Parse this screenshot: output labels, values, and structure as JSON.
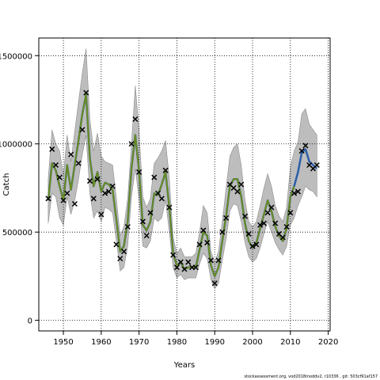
{
  "chart_data": {
    "type": "line",
    "xlabel": "Years",
    "ylabel": "Catch",
    "xlim": [
      1943.5,
      2020.5
    ],
    "ylim": [
      -60000,
      1600000
    ],
    "x_ticks": [
      1950,
      1960,
      1970,
      1980,
      1990,
      2000,
      2010,
      2020
    ],
    "y_ticks": [
      0,
      500000,
      1000000,
      1500000
    ],
    "y_tick_labels": [
      "0",
      "500000",
      "1000000",
      "1500000"
    ],
    "grid": true,
    "series": [
      {
        "kind": "band",
        "color": "#bdbdbd",
        "x": [
          1946,
          1947,
          1948,
          1949,
          1950,
          1951,
          1952,
          1953,
          1954,
          1955,
          1956,
          1957,
          1958,
          1959,
          1960,
          1961,
          1962,
          1963,
          1964,
          1965,
          1966,
          1967,
          1968,
          1969,
          1970,
          1971,
          1972,
          1973,
          1974,
          1975,
          1976,
          1977,
          1978,
          1979,
          1980,
          1981,
          1982,
          1983,
          1984,
          1985,
          1986,
          1987,
          1988,
          1989,
          1990,
          1991,
          1992,
          1993,
          1994,
          1995,
          1996,
          1997,
          1998,
          1999,
          2000,
          2001,
          2002,
          2003,
          2004,
          2005,
          2006,
          2007,
          2008,
          2009,
          2010,
          2011,
          2012,
          2013,
          2014,
          2015,
          2016,
          2017
        ],
        "lower": [
          550000,
          720000,
          700000,
          580000,
          540000,
          700000,
          600000,
          680000,
          800000,
          940000,
          1050000,
          720000,
          580000,
          620000,
          560000,
          640000,
          630000,
          610000,
          450000,
          280000,
          300000,
          420000,
          700000,
          860000,
          690000,
          420000,
          410000,
          450000,
          580000,
          560000,
          580000,
          680000,
          500000,
          300000,
          240000,
          260000,
          230000,
          240000,
          240000,
          240000,
          320000,
          380000,
          350000,
          230000,
          180000,
          210000,
          340000,
          460000,
          620000,
          660000,
          650000,
          560000,
          440000,
          360000,
          330000,
          350000,
          410000,
          490000,
          560000,
          500000,
          440000,
          400000,
          370000,
          420000,
          540000,
          580000,
          650000,
          700000,
          760000,
          740000,
          730000,
          700000
        ],
        "upper": [
          800000,
          1080000,
          1000000,
          960000,
          820000,
          1050000,
          900000,
          1070000,
          1240000,
          1400000,
          1540000,
          1140000,
          960000,
          1060000,
          930000,
          900000,
          890000,
          880000,
          690000,
          480000,
          530000,
          690000,
          1000000,
          1330000,
          1080000,
          700000,
          640000,
          690000,
          890000,
          920000,
          960000,
          1020000,
          800000,
          470000,
          380000,
          410000,
          360000,
          360000,
          360000,
          380000,
          500000,
          650000,
          610000,
          390000,
          330000,
          390000,
          560000,
          750000,
          930000,
          980000,
          1000000,
          880000,
          680000,
          560000,
          530000,
          560000,
          650000,
          750000,
          830000,
          760000,
          650000,
          590000,
          560000,
          640000,
          870000,
          960000,
          1010000,
          1170000,
          1200000,
          1110000,
          1080000,
          1050000
        ]
      },
      {
        "kind": "line",
        "color": "#2a5fa8",
        "width": 2.5,
        "x": [
          1946,
          1947,
          1948,
          1949,
          1950,
          1951,
          1952,
          1953,
          1954,
          1955,
          1956,
          1957,
          1958,
          1959,
          1960,
          1961,
          1962,
          1963,
          1964,
          1965,
          1966,
          1967,
          1968,
          1969,
          1970,
          1971,
          1972,
          1973,
          1974,
          1975,
          1976,
          1977,
          1978,
          1979,
          1980,
          1981,
          1982,
          1983,
          1984,
          1985,
          1986,
          1987,
          1988,
          1989,
          1990,
          1991,
          1992,
          1993,
          1994,
          1995,
          1996,
          1997,
          1998,
          1999,
          2000,
          2001,
          2002,
          2003,
          2004,
          2005,
          2006,
          2007,
          2008,
          2009,
          2010,
          2011,
          2012,
          2013,
          2014,
          2015,
          2016,
          2017
        ],
        "y": [
          680000,
          890000,
          850000,
          760000,
          680000,
          880000,
          740000,
          880000,
          1020000,
          1170000,
          1280000,
          920000,
          760000,
          840000,
          730000,
          780000,
          770000,
          740000,
          570000,
          390000,
          420000,
          560000,
          860000,
          1050000,
          850000,
          540000,
          510000,
          560000,
          720000,
          710000,
          770000,
          840000,
          640000,
          380000,
          310000,
          330000,
          290000,
          300000,
          300000,
          300000,
          400000,
          500000,
          480000,
          310000,
          250000,
          300000,
          450000,
          590000,
          760000,
          800000,
          800000,
          700000,
          550000,
          450000,
          410000,
          440000,
          520000,
          600000,
          680000,
          620000,
          530000,
          480000,
          450000,
          520000,
          700000,
          760000,
          840000,
          950000,
          970000,
          900000,
          880000,
          860000
        ]
      },
      {
        "kind": "line",
        "color": "#6a8c1f",
        "width": 2,
        "x": [
          1946,
          1947,
          1948,
          1949,
          1950,
          1951,
          1952,
          1953,
          1954,
          1955,
          1956,
          1957,
          1958,
          1959,
          1960,
          1961,
          1962,
          1963,
          1964,
          1965,
          1966,
          1967,
          1968,
          1969,
          1970,
          1971,
          1972,
          1973,
          1974,
          1975,
          1976,
          1977,
          1978,
          1979,
          1980,
          1981,
          1982,
          1983,
          1984,
          1985,
          1986,
          1987,
          1988,
          1989,
          1990,
          1991,
          1992,
          1993,
          1994,
          1995,
          1996,
          1997,
          1998,
          1999,
          2000,
          2001,
          2002,
          2003,
          2004,
          2005,
          2006,
          2007,
          2008,
          2009,
          2010,
          2011
        ],
        "y": [
          680000,
          890000,
          850000,
          760000,
          680000,
          880000,
          740000,
          880000,
          1020000,
          1170000,
          1280000,
          920000,
          760000,
          840000,
          730000,
          780000,
          770000,
          740000,
          570000,
          390000,
          420000,
          560000,
          860000,
          1050000,
          850000,
          540000,
          510000,
          560000,
          720000,
          710000,
          770000,
          840000,
          640000,
          380000,
          310000,
          330000,
          290000,
          300000,
          300000,
          300000,
          400000,
          500000,
          480000,
          310000,
          250000,
          300000,
          450000,
          590000,
          760000,
          800000,
          800000,
          700000,
          550000,
          450000,
          410000,
          440000,
          520000,
          600000,
          680000,
          620000,
          530000,
          480000,
          450000,
          520000,
          700000,
          760000
        ]
      },
      {
        "kind": "points",
        "marker": "x",
        "color": "#000000",
        "x": [
          1946,
          1947,
          1948,
          1949,
          1950,
          1951,
          1952,
          1953,
          1954,
          1955,
          1956,
          1957,
          1958,
          1959,
          1960,
          1961,
          1962,
          1963,
          1964,
          1965,
          1966,
          1967,
          1968,
          1969,
          1970,
          1971,
          1972,
          1973,
          1974,
          1975,
          1976,
          1977,
          1978,
          1979,
          1980,
          1981,
          1982,
          1983,
          1984,
          1985,
          1986,
          1987,
          1988,
          1989,
          1990,
          1991,
          1992,
          1993,
          1994,
          1995,
          1996,
          1997,
          1998,
          1999,
          2000,
          2001,
          2002,
          2003,
          2004,
          2005,
          2006,
          2007,
          2008,
          2009,
          2010,
          2011,
          2012,
          2013,
          2014,
          2015,
          2016,
          2017
        ],
        "y": [
          690000,
          970000,
          880000,
          810000,
          680000,
          720000,
          940000,
          660000,
          890000,
          1080000,
          1290000,
          790000,
          690000,
          800000,
          600000,
          720000,
          730000,
          760000,
          430000,
          350000,
          390000,
          530000,
          1000000,
          1140000,
          840000,
          560000,
          480000,
          610000,
          810000,
          720000,
          690000,
          850000,
          640000,
          370000,
          300000,
          330000,
          290000,
          330000,
          300000,
          300000,
          430000,
          510000,
          440000,
          340000,
          210000,
          340000,
          500000,
          580000,
          770000,
          750000,
          730000,
          770000,
          590000,
          490000,
          420000,
          430000,
          540000,
          550000,
          610000,
          640000,
          550000,
          490000,
          470000,
          530000,
          610000,
          720000,
          730000,
          960000,
          990000,
          880000,
          860000,
          880000
        ]
      }
    ]
  },
  "footer_text": "stockassessment.org, vod2018moddv2, r10336 , git: 503cf91af157"
}
